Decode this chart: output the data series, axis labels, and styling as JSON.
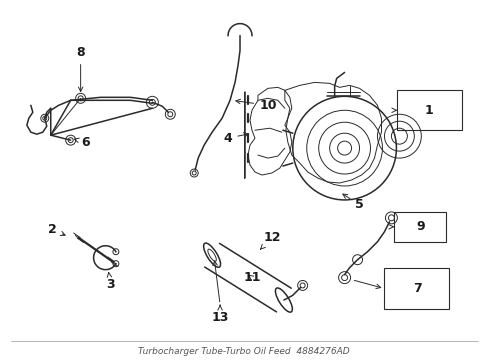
{
  "background_color": "#ffffff",
  "line_color": "#2a2a2a",
  "text_color": "#1a1a1a",
  "figsize": [
    4.89,
    3.6
  ],
  "dpi": 100,
  "title_text": "Turbocharger Tube-Turbo Oil Feed  4884276AD",
  "title_fontsize": 6.5,
  "label_fontsize": 9
}
